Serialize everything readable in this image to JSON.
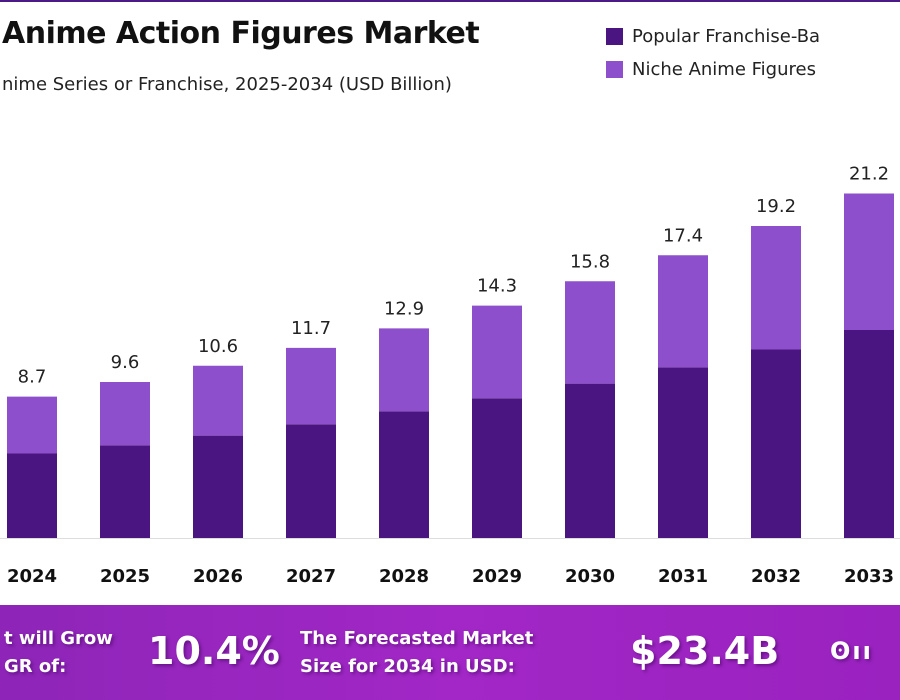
{
  "title": "Anime Action Figures Market",
  "subtitle": "nime Series or Franchise, 2025-2034 (USD Billion)",
  "legend": [
    {
      "label": "Popular Franchise-Ba",
      "color": "#4a1580"
    },
    {
      "label": "Niche Anime Figures",
      "color": "#8e4fcc"
    }
  ],
  "chart_data": {
    "type": "bar",
    "stacked": true,
    "categories": [
      "2024",
      "2025",
      "2026",
      "2027",
      "2028",
      "2029",
      "2030",
      "2031",
      "2032",
      "2033"
    ],
    "series": [
      {
        "name": "Popular Franchise-Ba",
        "values": [
          5.2,
          5.7,
          6.3,
          7.0,
          7.8,
          8.6,
          9.5,
          10.5,
          11.6,
          12.8
        ]
      },
      {
        "name": "Niche Anime Figures",
        "values": [
          3.5,
          3.9,
          4.3,
          4.7,
          5.1,
          5.7,
          6.3,
          6.9,
          7.6,
          8.4
        ]
      }
    ],
    "totals": [
      "8.7",
      "9.6",
      "10.6",
      "11.7",
      "12.9",
      "14.3",
      "15.8",
      "17.4",
      "19.2",
      "21.2"
    ],
    "ylim": [
      0,
      24
    ],
    "grid": false,
    "legend_position": "top-right"
  },
  "banner": {
    "cagr_text_line1": "t will Grow",
    "cagr_text_line2": "GR of:",
    "cagr_value": "10.4%",
    "forecast_text_line1": "The Forecasted Market",
    "forecast_text_line2": "Size for 2034 in USD:",
    "forecast_value": "$23.4B",
    "logo": "ʘıı"
  }
}
